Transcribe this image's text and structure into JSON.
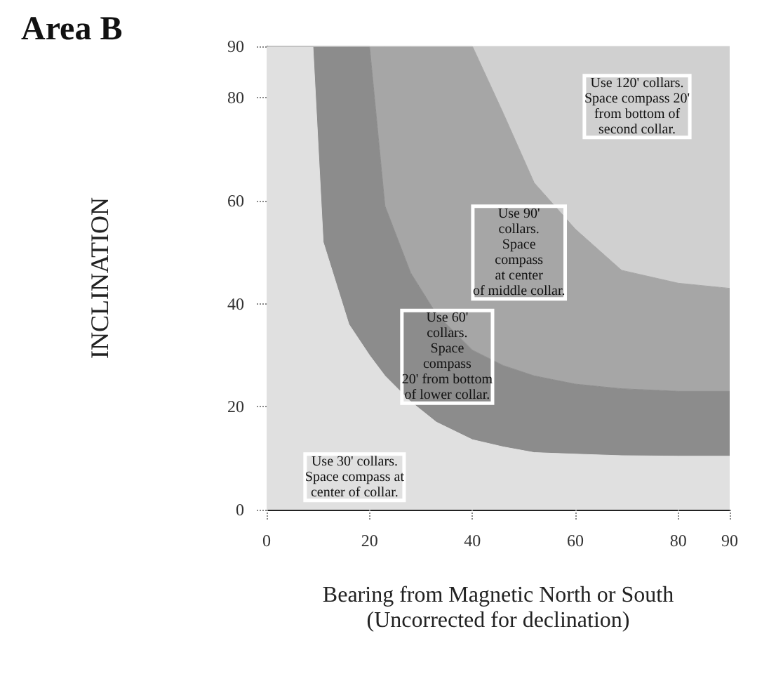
{
  "chart_data": {
    "type": "area",
    "stacked": true,
    "title": "Area B",
    "xlabel": "Bearing from Magnetic North or South\n(Uncorrected for declination)",
    "ylabel": "INCLINATION",
    "xlim": [
      0,
      90
    ],
    "xticks": [
      0,
      20,
      40,
      60,
      80,
      90
    ],
    "ylim": [
      0,
      90
    ],
    "yticks": [
      0,
      20,
      40,
      60,
      80,
      90
    ],
    "grid": false,
    "x": [
      0,
      9,
      11,
      16,
      20,
      23,
      28,
      33,
      40,
      46,
      52,
      60,
      69,
      80,
      90
    ],
    "series": [
      {
        "color": "#e0e0e0",
        "values": [
          90,
          90,
          52,
          36,
          30,
          26,
          21,
          17,
          13.6,
          12.2,
          11.1,
          10.8,
          10.5,
          10.4,
          10.4
        ]
      },
      {
        "color": "#8c8c8c",
        "values": [
          0,
          0,
          38,
          54,
          60,
          33,
          25,
          21,
          17.4,
          15.8,
          14.9,
          13.6,
          13,
          12.6,
          12.6
        ]
      },
      {
        "color": "#a6a6a6",
        "values": [
          0,
          0,
          0,
          0,
          0,
          31,
          44,
          52,
          59,
          49,
          37.5,
          30.1,
          23,
          21,
          20
        ]
      },
      {
        "color": "#d0d0d0",
        "values": [
          0,
          0,
          0,
          0,
          0,
          0,
          0,
          0,
          0,
          13,
          26.5,
          35.5,
          43.5,
          46,
          47
        ]
      }
    ],
    "annotations": [
      "Use 120' collars.\nSpace compass 20'\nfrom bottom of\nsecond collar.",
      "Use 90'\ncollars.\nSpace\ncompass\nat center\nof middle collar.",
      "Use 60'\ncollars.\nSpace\ncompass\n20' from bottom\nof lower collar.",
      "Use 30' collars.\nSpace compass at\ncenter of collar."
    ]
  }
}
